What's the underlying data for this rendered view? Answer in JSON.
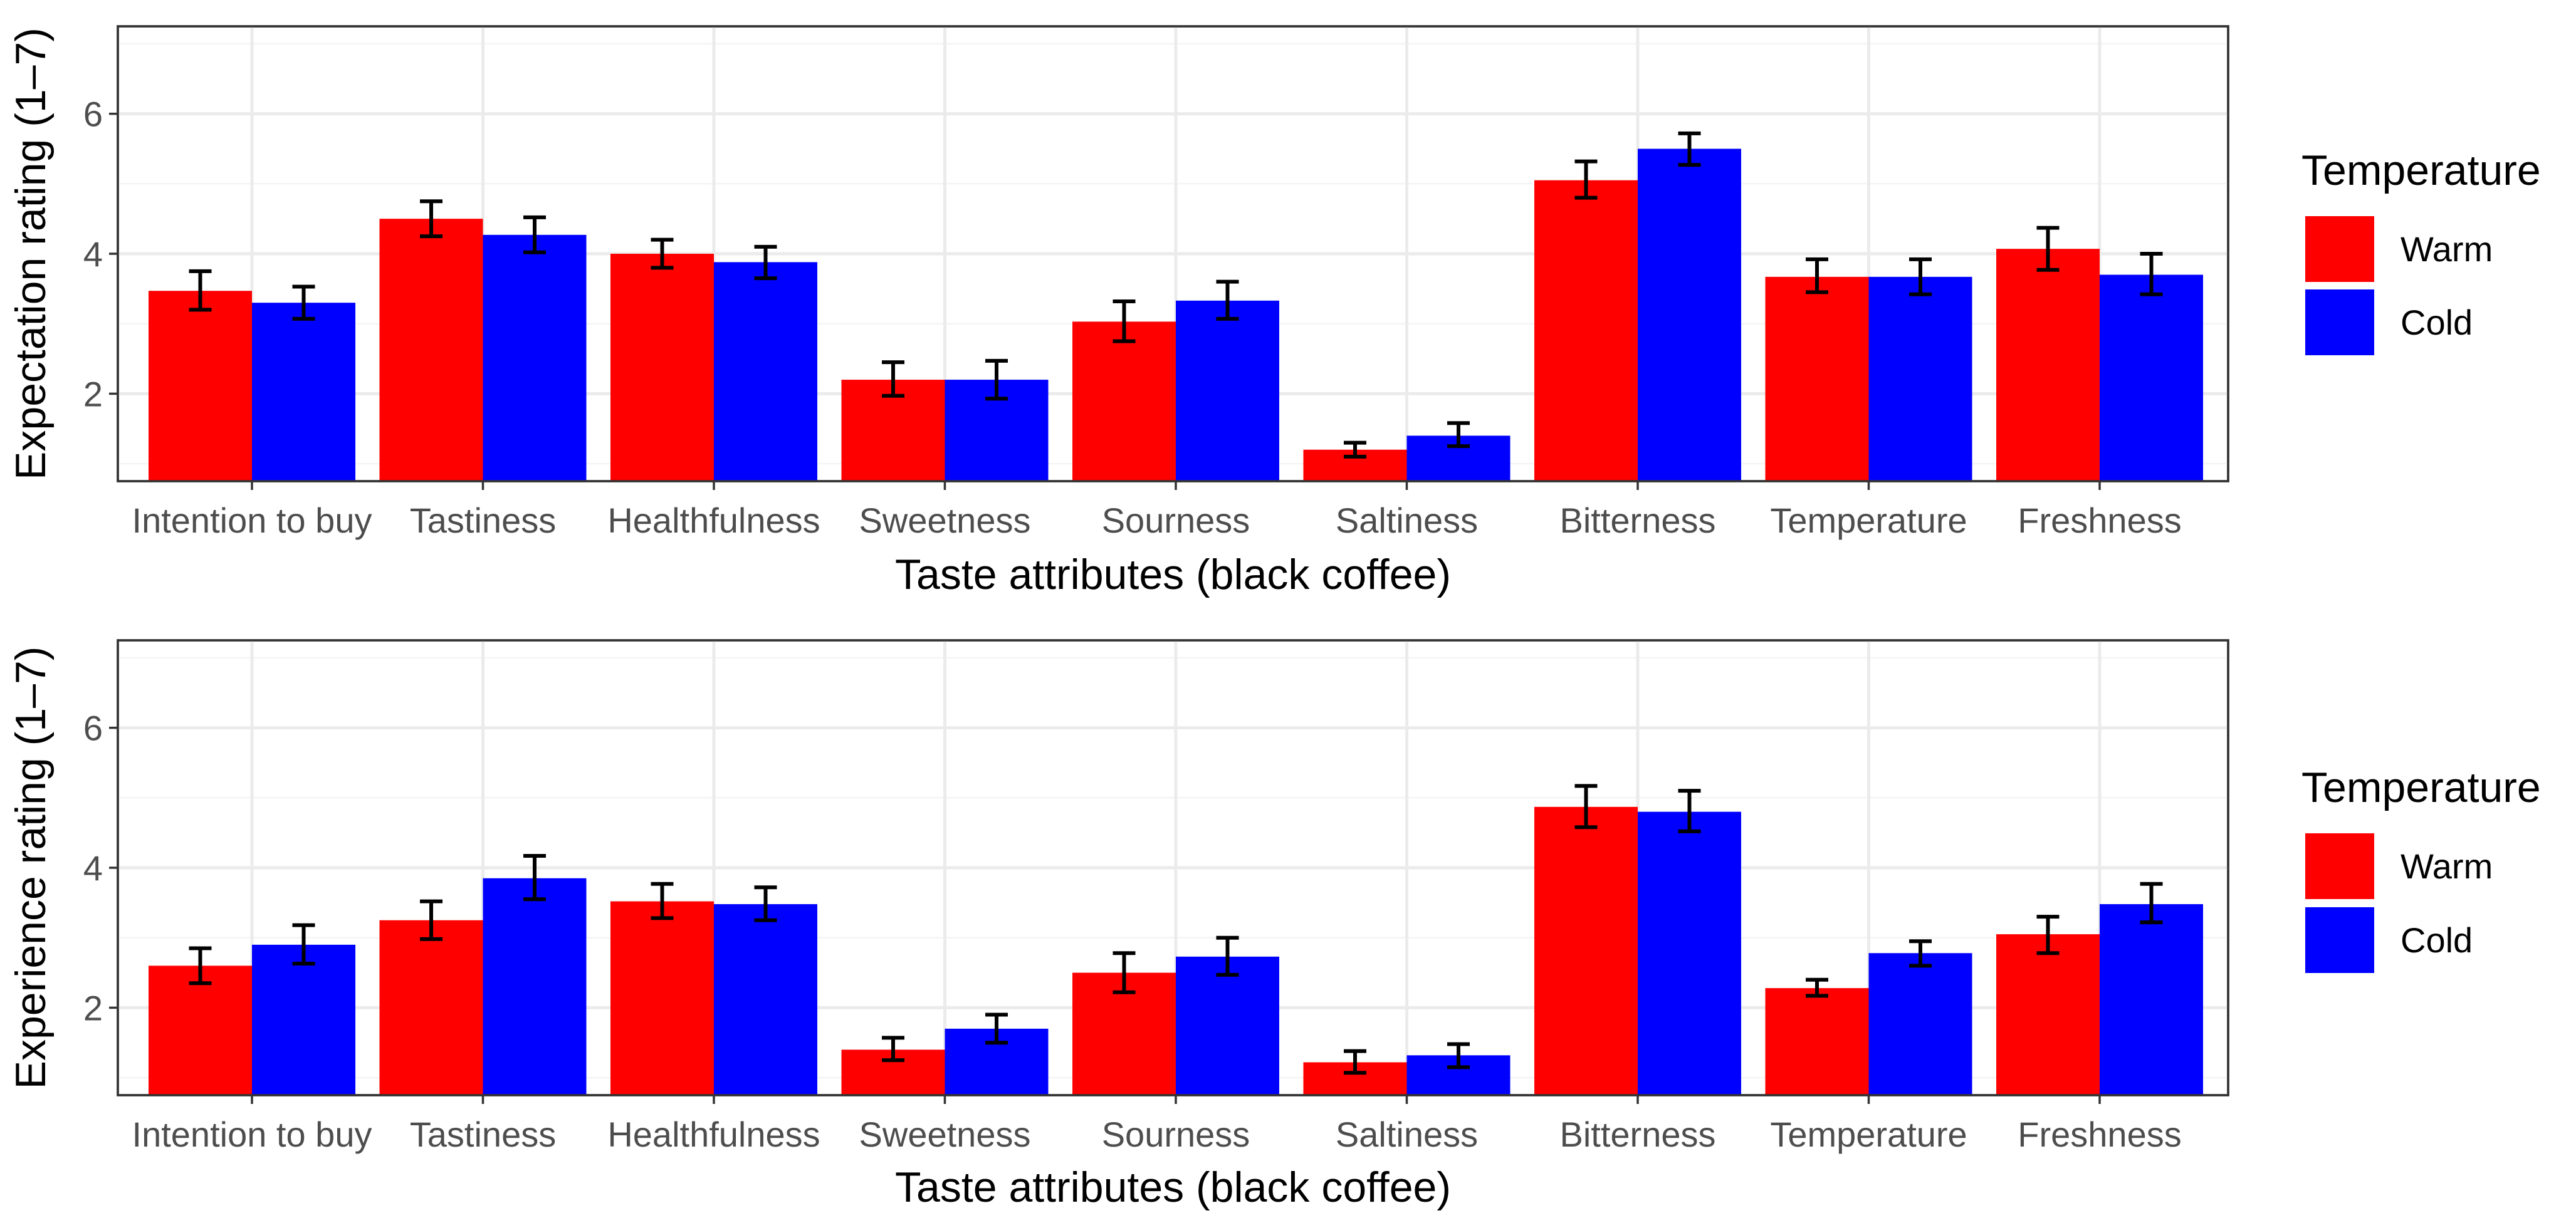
{
  "chart_data": [
    {
      "type": "bar",
      "xlabel": "Taste attributes (black coffee)",
      "ylabel": "Expectation rating (1–7)",
      "ylim": [
        0.75,
        7.25
      ],
      "yticks": [
        2,
        4,
        6
      ],
      "grid": true,
      "categories": [
        "Intention to buy",
        "Tastiness",
        "Healthfulness",
        "Sweetness",
        "Sourness",
        "Saltiness",
        "Bitterness",
        "Temperature",
        "Freshness"
      ],
      "legend": {
        "title": "Temperature",
        "position": "right"
      },
      "series": [
        {
          "name": "Warm",
          "color": "#ff0000",
          "values": [
            3.47,
            4.5,
            4.0,
            2.2,
            3.03,
            1.2,
            5.05,
            3.67,
            4.07
          ],
          "error_low": [
            3.2,
            4.25,
            3.8,
            1.97,
            2.75,
            1.1,
            4.8,
            3.45,
            3.77
          ],
          "error_high": [
            3.75,
            4.75,
            4.2,
            2.45,
            3.32,
            1.3,
            5.32,
            3.92,
            4.37
          ]
        },
        {
          "name": "Cold",
          "color": "#0000ff",
          "values": [
            3.3,
            4.27,
            3.88,
            2.2,
            3.33,
            1.4,
            5.5,
            3.67,
            3.7
          ],
          "error_low": [
            3.07,
            4.02,
            3.65,
            1.93,
            3.07,
            1.25,
            5.27,
            3.42,
            3.42
          ],
          "error_high": [
            3.53,
            4.52,
            4.1,
            2.47,
            3.6,
            1.58,
            5.72,
            3.92,
            4.0
          ]
        }
      ]
    },
    {
      "type": "bar",
      "xlabel": "Taste attributes (black coffee)",
      "ylabel": "Experience rating (1–7)",
      "ylim": [
        0.75,
        7.25
      ],
      "yticks": [
        2,
        4,
        6
      ],
      "grid": true,
      "categories": [
        "Intention to buy",
        "Tastiness",
        "Healthfulness",
        "Sweetness",
        "Sourness",
        "Saltiness",
        "Bitterness",
        "Temperature",
        "Freshness"
      ],
      "legend": {
        "title": "Temperature",
        "position": "right"
      },
      "series": [
        {
          "name": "Warm",
          "color": "#ff0000",
          "values": [
            2.6,
            3.25,
            3.52,
            1.4,
            2.5,
            1.22,
            4.87,
            2.28,
            3.05
          ],
          "error_low": [
            2.35,
            2.98,
            3.28,
            1.25,
            2.22,
            1.07,
            4.58,
            2.17,
            2.78
          ],
          "error_high": [
            2.85,
            3.52,
            3.77,
            1.57,
            2.78,
            1.38,
            5.17,
            2.4,
            3.3
          ]
        },
        {
          "name": "Cold",
          "color": "#0000ff",
          "values": [
            2.9,
            3.85,
            3.48,
            1.7,
            2.73,
            1.32,
            4.8,
            2.78,
            3.48
          ],
          "error_low": [
            2.63,
            3.55,
            3.25,
            1.5,
            2.47,
            1.15,
            4.52,
            2.6,
            3.22
          ],
          "error_high": [
            3.18,
            4.17,
            3.72,
            1.9,
            3.0,
            1.48,
            5.1,
            2.95,
            3.77
          ]
        }
      ]
    }
  ]
}
